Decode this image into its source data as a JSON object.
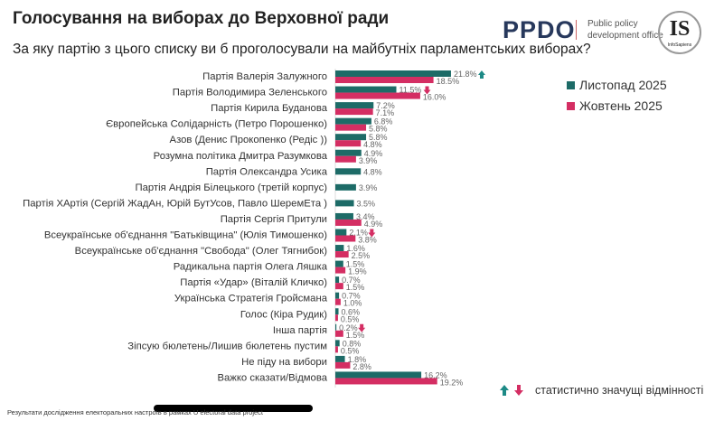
{
  "header": {
    "title": "Голосування на виборах до Верховної ради",
    "subtitle": "За яку партію з цього списку ви б проголосували на майбутніх парламентських виборах?",
    "logo_ppdo": "PPDO",
    "logo_ppdo_sub": "Public policy development office",
    "logo_is": "IS",
    "logo_is_sub": "InfoSapiens"
  },
  "significance_note": "статистично значущі відмінності",
  "footer": "Результати дослідження електоральних настроїв в рамках U electoral data project",
  "chart_data": {
    "type": "bar",
    "orientation": "horizontal",
    "categories": [
      "Партія Валерія Залужного",
      "Партія Володимира Зеленського",
      "Партія Кирила Буданова",
      "Європейська Солідарність (Петро Порошенко)",
      "Азов (Денис Прокопенко (Редіс ))",
      "Розумна політика Дмитра Разумкова",
      "Партія Олександра Усика",
      "Партія Андрія Білецького (третій корпус)",
      "Партія ХАртія (Сергій ЖадАн, Юрій БутУсов, Павло ШеремЕта )",
      "Партія Сергія Притули",
      "Всеукраїнське об'єднання \"Батьківщина\" (Юлія Тимошенко)",
      "Всеукраїнське об'єднання \"Свобода\" (Олег Тягнибок)",
      "Радикальна партія Олега Ляшка",
      "Партія «Удар» (Віталій Кличко)",
      "Українська Стратегія Гройсмана",
      "Голос (Кіра Рудик)",
      "Інша партія",
      "Зіпсую бюлетень/Лишив бюлетень пустим",
      "Не піду на вибори",
      "Важко сказати/Відмова"
    ],
    "series": [
      {
        "name": "Листопад 2025",
        "color": "#1d6b67",
        "values": [
          21.8,
          11.5,
          7.2,
          6.8,
          5.8,
          4.9,
          4.8,
          3.9,
          3.5,
          3.4,
          2.1,
          1.6,
          1.5,
          0.7,
          0.7,
          0.6,
          0.2,
          0.8,
          1.8,
          16.2
        ]
      },
      {
        "name": "Жовтень 2025",
        "color": "#d42e63",
        "values": [
          18.5,
          16.0,
          7.1,
          5.8,
          4.8,
          3.9,
          null,
          null,
          null,
          4.9,
          3.8,
          2.5,
          1.9,
          1.5,
          1.0,
          0.5,
          1.5,
          0.5,
          2.8,
          19.2
        ]
      }
    ],
    "significant_changes": [
      {
        "category": "Партія Валерія Залужного",
        "direction": "up"
      },
      {
        "category": "Партія Володимира Зеленського",
        "direction": "down"
      },
      {
        "category": "Всеукраїнське об'єднання \"Батьківщина\" (Юлія Тимошенко)",
        "direction": "down"
      },
      {
        "category": "Інша партія",
        "direction": "down"
      }
    ],
    "value_suffix": "%",
    "legend_position": "right",
    "grid": false
  }
}
